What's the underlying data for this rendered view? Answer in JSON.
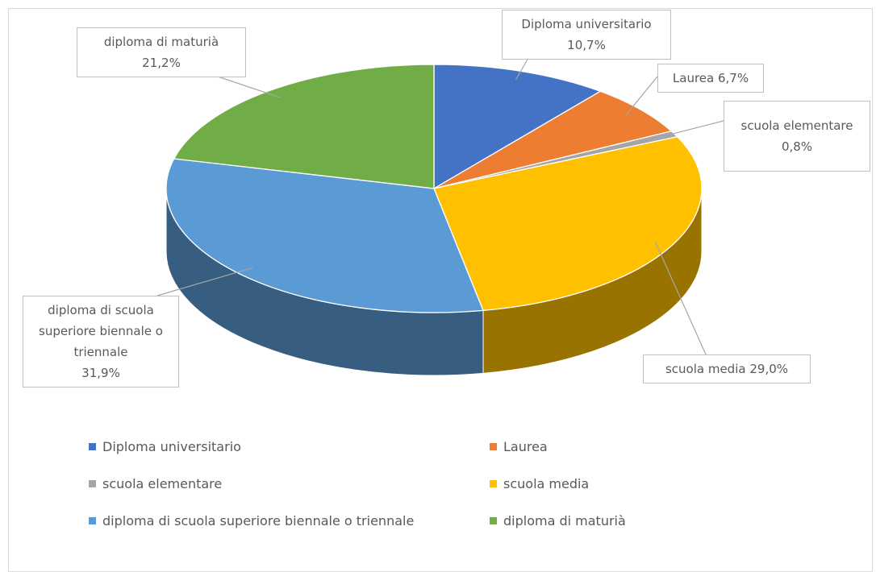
{
  "chart_data": {
    "type": "pie3d",
    "categories": [
      "Diploma universitario",
      "Laurea",
      "scuola elementare",
      "scuola media",
      "diploma di scuola superiore biennale o triennale",
      "diploma di maturià"
    ],
    "values": [
      10.7,
      6.7,
      0.8,
      29.0,
      31.9,
      21.2
    ],
    "value_labels": [
      "10,7%",
      "6,7%",
      "0,8%",
      "29,0%",
      "31,9%",
      "21,2%"
    ],
    "colors": [
      "#4472c4",
      "#ed7d31",
      "#a5a5a5",
      "#ffc000",
      "#5b9bd5",
      "#70ad47"
    ],
    "legend": "bottom"
  }
}
